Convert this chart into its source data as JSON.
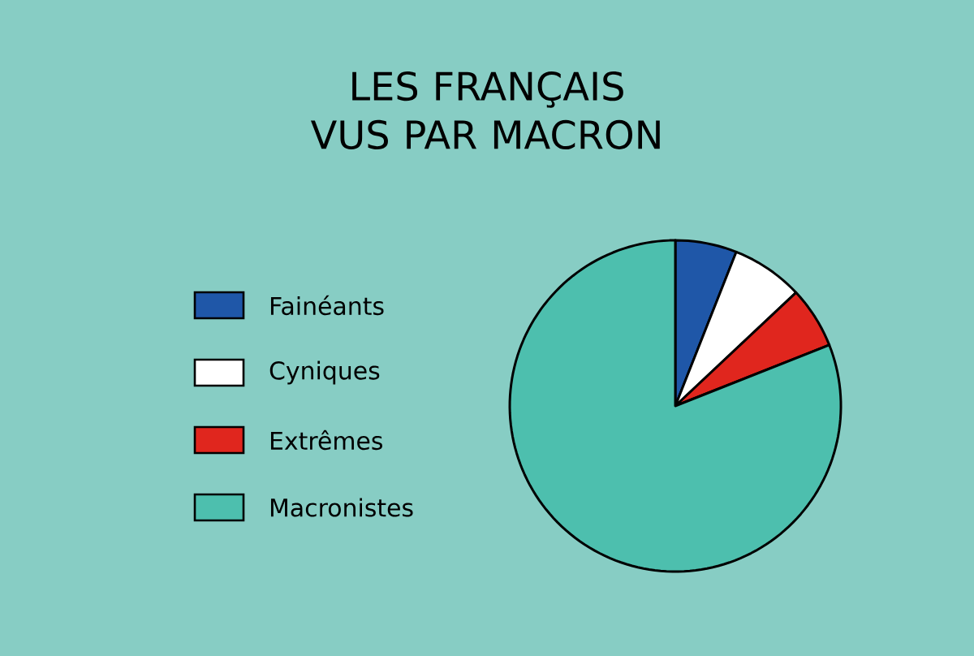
{
  "chart_data": {
    "type": "pie",
    "title": "LES FRANÇAIS VUS PAR MACRON",
    "categories": [
      "Fainéants",
      "Cyniques",
      "Extrêmes",
      "Macronistes"
    ],
    "values": [
      6,
      7,
      6,
      81
    ],
    "colors": [
      "#1f57a8",
      "#ffffff",
      "#e0261e",
      "#4dbfae"
    ],
    "legend": "left"
  }
}
